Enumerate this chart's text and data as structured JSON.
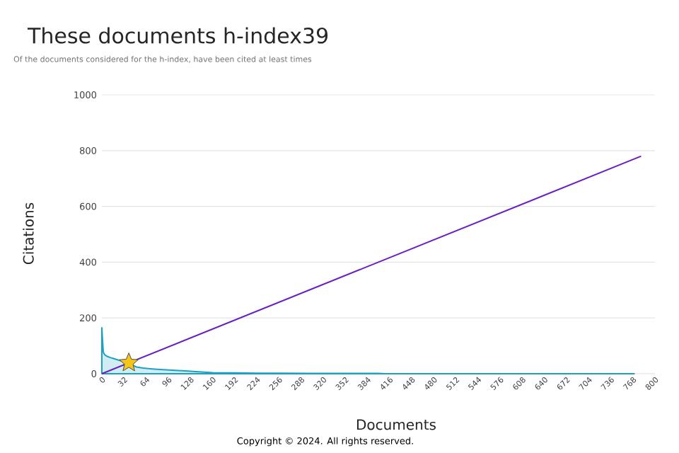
{
  "chart_data": {
    "type": "line",
    "title": "These documents h-index39",
    "subtitle": "Of the documents considered for the h-index, have been cited at least times",
    "xlabel": "Documents",
    "ylabel": "Citations",
    "annotations": [
      "Copyright © 2024. All rights reserved."
    ],
    "xlim": [
      0,
      800
    ],
    "xticks": [
      0,
      32,
      64,
      96,
      128,
      160,
      192,
      224,
      256,
      288,
      320,
      352,
      384,
      416,
      448,
      480,
      512,
      544,
      576,
      608,
      640,
      672,
      704,
      736,
      768,
      800
    ],
    "ylim": [
      0,
      1000
    ],
    "yticks": [
      0,
      200,
      400,
      600,
      800,
      1000
    ],
    "grid": "y",
    "series": [
      {
        "type": "area",
        "color": "#1ba1c5",
        "x": [
          0,
          1,
          2,
          3,
          5,
          8,
          12,
          16,
          20,
          25,
          30,
          35,
          39,
          45,
          50,
          60,
          70,
          80,
          100,
          120,
          140,
          160,
          192,
          224,
          256,
          300,
          350,
          400,
          410,
          450,
          500,
          600,
          700,
          770
        ],
        "values": [
          165,
          120,
          80,
          72,
          66,
          62,
          58,
          55,
          52,
          48,
          45,
          42,
          39,
          30,
          24,
          20,
          18,
          16,
          13,
          10,
          7,
          4,
          3,
          2,
          2,
          1,
          1,
          1,
          0,
          0,
          0,
          0,
          0,
          0
        ]
      },
      {
        "color": "#6a1fc0",
        "x": [
          0,
          780
        ],
        "values": [
          0,
          780
        ]
      },
      {
        "type": "scatter",
        "marker": "star",
        "color": "#f5c518",
        "x": [
          39
        ],
        "values": [
          39
        ]
      }
    ]
  }
}
